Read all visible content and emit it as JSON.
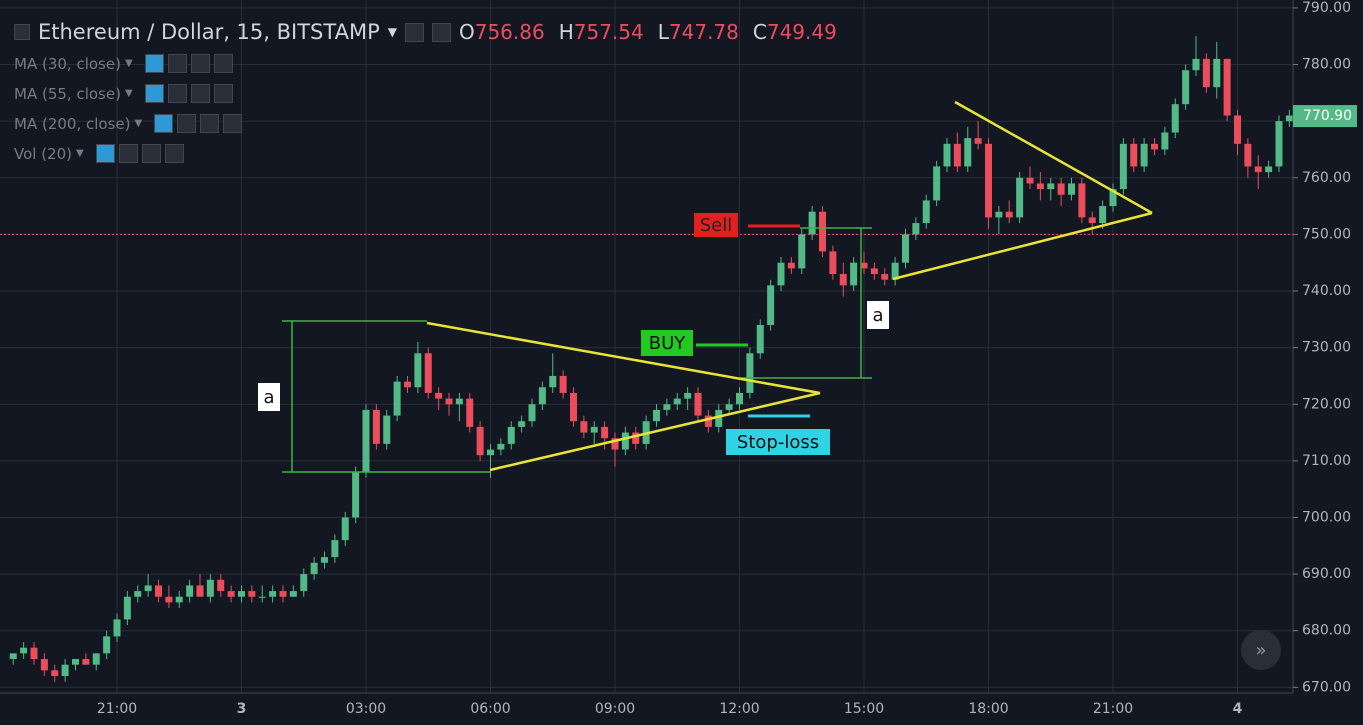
{
  "chart_data": {
    "type": "candlestick",
    "symbol": "Ethereum / Dollar, 15, BITSTAMP",
    "ohlc_readout": [
      {
        "label": "O",
        "value": 756.86
      },
      {
        "label": "H",
        "value": 757.54
      },
      {
        "label": "L",
        "value": 747.78
      },
      {
        "label": "C",
        "value": 749.49
      }
    ],
    "indicators": [
      "MA (30, close)",
      "MA (55, close)",
      "MA (200, close)",
      "Vol (20)"
    ],
    "up_color": "#53b987",
    "down_color": "#eb4d5c",
    "categories": [
      null,
      null,
      null,
      null,
      null,
      null,
      null,
      null,
      null,
      null,
      "21:00",
      null,
      null,
      null,
      null,
      null,
      null,
      null,
      null,
      null,
      null,
      null,
      "3",
      null,
      null,
      null,
      null,
      null,
      null,
      null,
      null,
      null,
      null,
      null,
      "03:00",
      null,
      null,
      null,
      null,
      null,
      null,
      null,
      null,
      null,
      null,
      null,
      "06:00",
      null,
      null,
      null,
      null,
      null,
      null,
      null,
      null,
      null,
      null,
      null,
      "09:00",
      null,
      null,
      null,
      null,
      null,
      null,
      null,
      null,
      null,
      null,
      null,
      "12:00",
      null,
      null,
      null,
      null,
      null,
      null,
      null,
      null,
      null,
      null,
      null,
      "15:00",
      null,
      null,
      null,
      null,
      null,
      null,
      null,
      null,
      null,
      null,
      null,
      "18:00",
      null,
      null,
      null,
      null,
      null,
      null,
      null,
      null,
      null,
      null,
      null,
      "21:00",
      null,
      null,
      null,
      null,
      null,
      null,
      null,
      null,
      null,
      null,
      null,
      "4",
      null,
      null,
      null,
      null,
      null
    ],
    "ohlc": [
      [
        675,
        676,
        674,
        676
      ],
      [
        676,
        678,
        675,
        677
      ],
      [
        677,
        678,
        674,
        675
      ],
      [
        675,
        676,
        672,
        673
      ],
      [
        673,
        674,
        671,
        672
      ],
      [
        672,
        675,
        671,
        674
      ],
      [
        674,
        675,
        673,
        675
      ],
      [
        675,
        676,
        674,
        674
      ],
      [
        674,
        676,
        673,
        676
      ],
      [
        676,
        680,
        675,
        679
      ],
      [
        679,
        683,
        678,
        682
      ],
      [
        682,
        687,
        681,
        686
      ],
      [
        686,
        688,
        685,
        687
      ],
      [
        687,
        690,
        686,
        688
      ],
      [
        688,
        689,
        685,
        686
      ],
      [
        686,
        688,
        684,
        685
      ],
      [
        685,
        687,
        684,
        686
      ],
      [
        686,
        689,
        685,
        688
      ],
      [
        688,
        690,
        686,
        686
      ],
      [
        686,
        690,
        685,
        689
      ],
      [
        689,
        690,
        686,
        687
      ],
      [
        687,
        688,
        685,
        686
      ],
      [
        686,
        688,
        685,
        687
      ],
      [
        687,
        688,
        685,
        686
      ],
      [
        686,
        688,
        685,
        686
      ],
      [
        686,
        688,
        685,
        687
      ],
      [
        687,
        688,
        685,
        686
      ],
      [
        686,
        688,
        686,
        687
      ],
      [
        687,
        691,
        686,
        690
      ],
      [
        690,
        693,
        689,
        692
      ],
      [
        692,
        694,
        691,
        693
      ],
      [
        693,
        697,
        692,
        696
      ],
      [
        696,
        701,
        695,
        700
      ],
      [
        700,
        709,
        699,
        708
      ],
      [
        708,
        720,
        707,
        719
      ],
      [
        719,
        720,
        712,
        713
      ],
      [
        713,
        719,
        712,
        718
      ],
      [
        718,
        725,
        717,
        724
      ],
      [
        724,
        725,
        722,
        723
      ],
      [
        723,
        731,
        722,
        729
      ],
      [
        729,
        730,
        721,
        722
      ],
      [
        722,
        723,
        719,
        721
      ],
      [
        721,
        722,
        718,
        720
      ],
      [
        720,
        722,
        717,
        721
      ],
      [
        721,
        722,
        715,
        716
      ],
      [
        716,
        717,
        710,
        711
      ],
      [
        711,
        713,
        707,
        712
      ],
      [
        712,
        714,
        711,
        713
      ],
      [
        713,
        717,
        712,
        716
      ],
      [
        716,
        718,
        715,
        717
      ],
      [
        717,
        721,
        716,
        720
      ],
      [
        720,
        724,
        719,
        723
      ],
      [
        723,
        729,
        722,
        725
      ],
      [
        725,
        726,
        721,
        722
      ],
      [
        722,
        723,
        716,
        717
      ],
      [
        717,
        718,
        714,
        715
      ],
      [
        715,
        717,
        713,
        716
      ],
      [
        716,
        717,
        712,
        714
      ],
      [
        714,
        715,
        709,
        712
      ],
      [
        712,
        716,
        711,
        715
      ],
      [
        715,
        716,
        712,
        713
      ],
      [
        713,
        718,
        712,
        717
      ],
      [
        717,
        720,
        716,
        719
      ],
      [
        719,
        721,
        718,
        720
      ],
      [
        720,
        722,
        719,
        721
      ],
      [
        721,
        723,
        719,
        722
      ],
      [
        722,
        723,
        717,
        718
      ],
      [
        718,
        719,
        715,
        716
      ],
      [
        716,
        720,
        715,
        719
      ],
      [
        719,
        721,
        718,
        720
      ],
      [
        720,
        723,
        719,
        722
      ],
      [
        722,
        730,
        721,
        729
      ],
      [
        729,
        735,
        728,
        734
      ],
      [
        734,
        742,
        733,
        741
      ],
      [
        741,
        746,
        740,
        745
      ],
      [
        745,
        746,
        743,
        744
      ],
      [
        744,
        751,
        743,
        750
      ],
      [
        750,
        755,
        749,
        754
      ],
      [
        754,
        755,
        746,
        747
      ],
      [
        747,
        748,
        742,
        743
      ],
      [
        743,
        745,
        739,
        741
      ],
      [
        741,
        746,
        740,
        745
      ],
      [
        745,
        747,
        743,
        744
      ],
      [
        744,
        745,
        742,
        743
      ],
      [
        743,
        744,
        741,
        742
      ],
      [
        742,
        746,
        741,
        745
      ],
      [
        745,
        751,
        744,
        750
      ],
      [
        750,
        753,
        749,
        752
      ],
      [
        752,
        757,
        751,
        756
      ],
      [
        756,
        763,
        755,
        762
      ],
      [
        762,
        767,
        761,
        766
      ],
      [
        766,
        768,
        761,
        762
      ],
      [
        762,
        769,
        761,
        767
      ],
      [
        767,
        770,
        765,
        766
      ],
      [
        766,
        767,
        751,
        753
      ],
      [
        753,
        755,
        750,
        754
      ],
      [
        754,
        756,
        752,
        753
      ],
      [
        753,
        761,
        752,
        760
      ],
      [
        760,
        762,
        758,
        759
      ],
      [
        759,
        761,
        756,
        758
      ],
      [
        758,
        760,
        756,
        759
      ],
      [
        759,
        760,
        755,
        757
      ],
      [
        757,
        760,
        756,
        759
      ],
      [
        759,
        760,
        752,
        753
      ],
      [
        753,
        754,
        750,
        752
      ],
      [
        752,
        756,
        751,
        755
      ],
      [
        755,
        759,
        754,
        758
      ],
      [
        758,
        767,
        757,
        766
      ],
      [
        766,
        767,
        761,
        762
      ],
      [
        762,
        767,
        761,
        766
      ],
      [
        766,
        767,
        764,
        765
      ],
      [
        765,
        769,
        764,
        768
      ],
      [
        768,
        774,
        767,
        773
      ],
      [
        773,
        780,
        772,
        779
      ],
      [
        779,
        785,
        778,
        781
      ],
      [
        781,
        782,
        775,
        776
      ],
      [
        776,
        784,
        774,
        781
      ],
      [
        781,
        781,
        770,
        771
      ],
      [
        771,
        772,
        764,
        766
      ],
      [
        766,
        767,
        760,
        762
      ],
      [
        762,
        764,
        758,
        761
      ],
      [
        761,
        763,
        760,
        762
      ],
      [
        762,
        771,
        761,
        770
      ],
      [
        770,
        772,
        769,
        771
      ]
    ],
    "ylim": [
      669,
      791.4
    ],
    "yticks": [
      {
        "value": 670,
        "label": "670.00"
      },
      {
        "value": 680,
        "label": "680.00"
      },
      {
        "value": 690,
        "label": "690.00"
      },
      {
        "value": 700,
        "label": "700.00"
      },
      {
        "value": 710,
        "label": "710.00"
      },
      {
        "value": 720,
        "label": "720.00"
      },
      {
        "value": 730,
        "label": "730.00"
      },
      {
        "value": 740,
        "label": "740.00"
      },
      {
        "value": 750,
        "label": "750.00"
      },
      {
        "value": 760,
        "label": "760.00"
      },
      {
        "value": 770,
        "label": "770.00"
      },
      {
        "value": 780,
        "label": "780.00"
      },
      {
        "value": 790,
        "label": "790.00"
      }
    ],
    "last_price": {
      "value": 770.9,
      "label": "770.90"
    },
    "price_line": 750,
    "grid": true,
    "annotations": [
      "a",
      "a",
      "BUY",
      "Sell",
      "Stop-loss"
    ]
  }
}
